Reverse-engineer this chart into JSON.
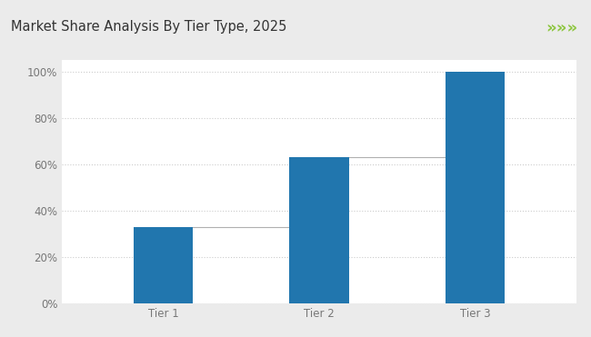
{
  "title": "Market Share Analysis By Tier Type, 2025",
  "categories": [
    "Tier 1",
    "Tier 2",
    "Tier 3"
  ],
  "bar_values": [
    33,
    63,
    100
  ],
  "bar_color": "#2176AE",
  "connector_color": "#b0b0b0",
  "background_color": "#ebebeb",
  "plot_bg_color": "#ffffff",
  "title_color": "#333333",
  "tick_label_color": "#777777",
  "header_line_color": "#8dc63f",
  "chevron_color": "#8dc63f",
  "ylim": [
    0,
    105
  ],
  "yticks": [
    0,
    20,
    40,
    60,
    80,
    100
  ],
  "title_fontsize": 10.5,
  "tick_fontsize": 8.5
}
